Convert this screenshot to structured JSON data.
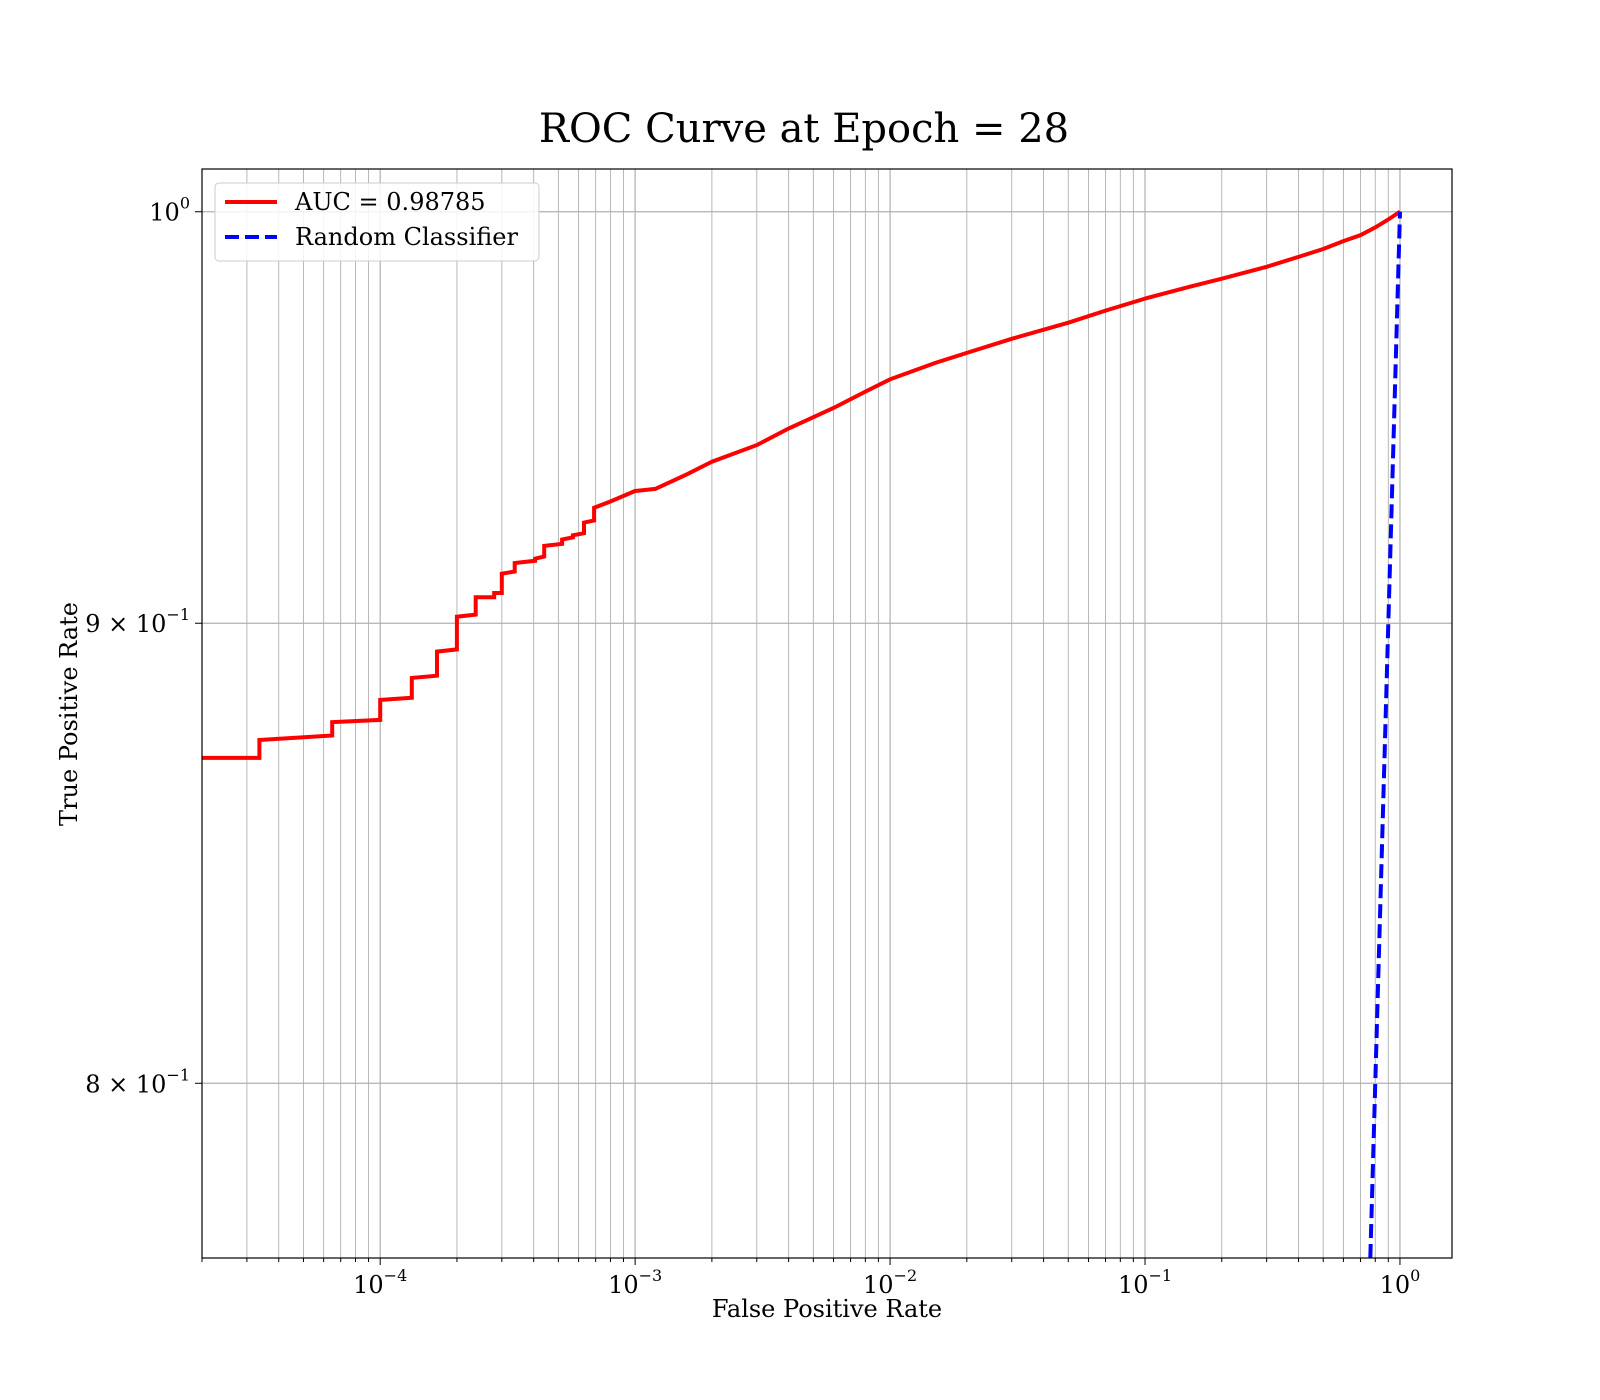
{
  "chart_data": {
    "type": "line",
    "title": "ROC Curve at Epoch = 28",
    "xlabel": "False Positive Rate",
    "ylabel": "True Positive Rate",
    "xscale": "log",
    "yscale": "log",
    "xlim": [
      2e-05,
      1.6
    ],
    "ylim": [
      0.765,
      1.011
    ],
    "grid": true,
    "grid_minor": true,
    "legend_position": "top-left",
    "x_ticks": [
      {
        "value": 0.0001,
        "base": "10",
        "exp": "−4"
      },
      {
        "value": 0.001,
        "base": "10",
        "exp": "−3"
      },
      {
        "value": 0.01,
        "base": "10",
        "exp": "−2"
      },
      {
        "value": 0.1,
        "base": "10",
        "exp": "−1"
      },
      {
        "value": 1,
        "base": "10",
        "exp": "0"
      }
    ],
    "y_ticks": [
      {
        "value": 1.0,
        "base": "10",
        "exp": "0"
      },
      {
        "value": 0.9,
        "base": "9 × 10",
        "exp": "−1"
      },
      {
        "value": 0.8,
        "base": "8 × 10",
        "exp": "−1"
      }
    ],
    "series": [
      {
        "name": "AUC = 0.98785",
        "color": "#ff0000",
        "style": "solid",
        "x": [
          2e-05,
          3.36e-05,
          3.36e-05,
          6.48e-05,
          6.48e-05,
          0.0001,
          0.0001,
          0.000133,
          0.000133,
          0.000167,
          0.000167,
          0.0002,
          0.0002,
          0.000237,
          0.000237,
          0.00028,
          0.00028,
          0.0003,
          0.0003,
          0.000337,
          0.000337,
          0.000405,
          0.000405,
          0.00044,
          0.00044,
          0.000517,
          0.000517,
          0.00057,
          0.00057,
          0.00063,
          0.00063,
          0.00069,
          0.00069,
          0.0008,
          0.001,
          0.0012,
          0.0016,
          0.002,
          0.003,
          0.004,
          0.006,
          0.008,
          0.01,
          0.015,
          0.02,
          0.03,
          0.05,
          0.07,
          0.1,
          0.15,
          0.2,
          0.3,
          0.4,
          0.5,
          0.6,
          0.7,
          0.8,
          0.9,
          1.0
        ],
        "y": [
          0.8695,
          0.8695,
          0.8735,
          0.8745,
          0.8775,
          0.878,
          0.8825,
          0.883,
          0.8875,
          0.888,
          0.8935,
          0.894,
          0.9015,
          0.902,
          0.906,
          0.906,
          0.907,
          0.907,
          0.9115,
          0.912,
          0.914,
          0.9145,
          0.915,
          0.9155,
          0.918,
          0.9185,
          0.9195,
          0.92,
          0.9205,
          0.921,
          0.9235,
          0.924,
          0.927,
          0.9285,
          0.931,
          0.9315,
          0.935,
          0.938,
          0.942,
          0.946,
          0.951,
          0.955,
          0.958,
          0.962,
          0.9645,
          0.968,
          0.972,
          0.975,
          0.978,
          0.981,
          0.983,
          0.986,
          0.9885,
          0.9905,
          0.9925,
          0.994,
          0.996,
          0.998,
          1.0
        ]
      },
      {
        "name": "Random Classifier",
        "color": "#0000ff",
        "style": "dashed",
        "x": [
          0.765,
          1.0
        ],
        "y": [
          0.765,
          1.0
        ]
      }
    ]
  }
}
